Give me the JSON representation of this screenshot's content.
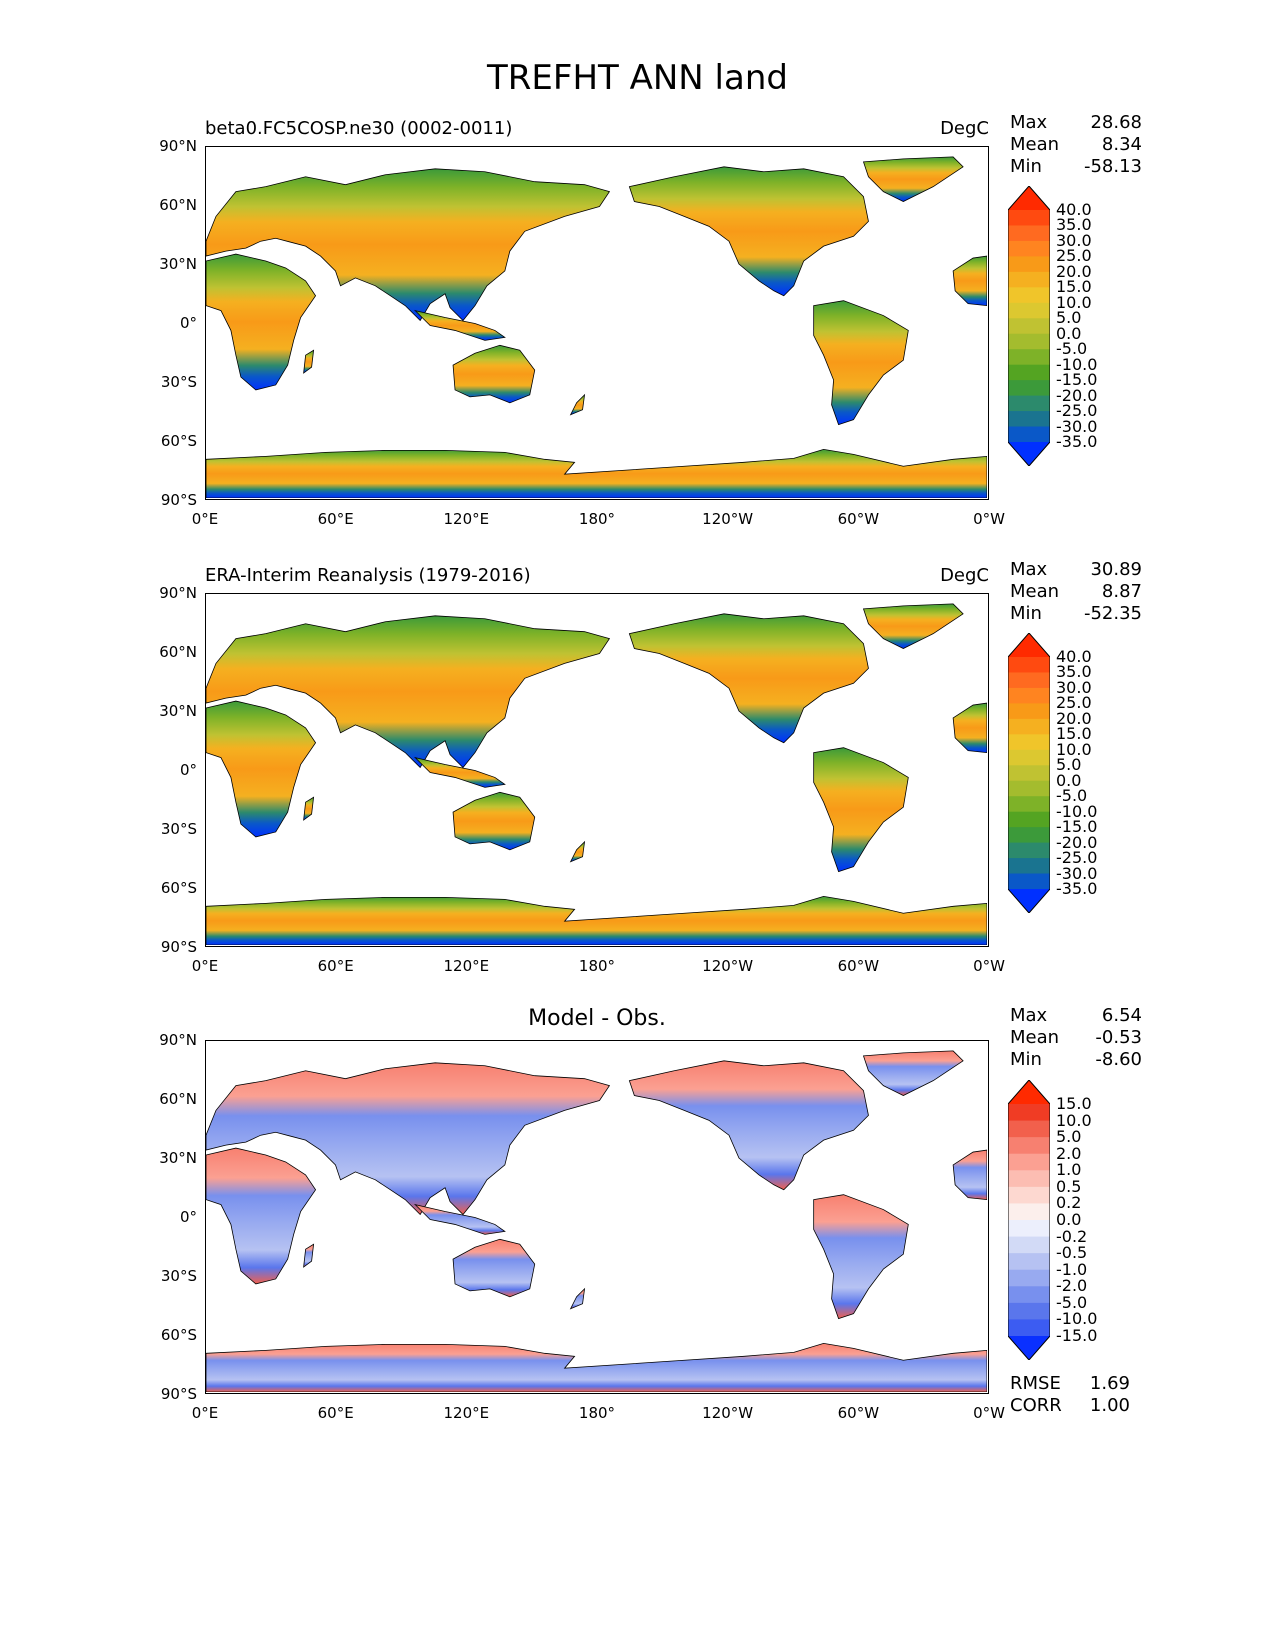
{
  "figure_title": "TREFHT ANN land",
  "lat_ticks": [
    "90°N",
    "60°N",
    "30°N",
    "0°",
    "30°S",
    "60°S",
    "90°S"
  ],
  "lon_ticks": [
    "0°E",
    "60°E",
    "120°E",
    "180°",
    "120°W",
    "60°W",
    "0°W"
  ],
  "panels": [
    {
      "title_left": "beta0.FC5COSP.ne30 (0002-0011)",
      "title_center": "",
      "units": "DegC",
      "stats": [
        {
          "label": "Max",
          "value": "28.68"
        },
        {
          "label": "Mean",
          "value": "8.34"
        },
        {
          "label": "Min",
          "value": "-58.13"
        }
      ],
      "colorbar": "abs"
    },
    {
      "title_left": "ERA-Interim Reanalysis (1979-2016)",
      "title_center": "",
      "units": "DegC",
      "stats": [
        {
          "label": "Max",
          "value": "30.89"
        },
        {
          "label": "Mean",
          "value": "8.87"
        },
        {
          "label": "Min",
          "value": "-52.35"
        }
      ],
      "colorbar": "abs"
    },
    {
      "title_left": "",
      "title_center": "Model - Obs.",
      "units": "",
      "stats": [
        {
          "label": "Max",
          "value": "6.54"
        },
        {
          "label": "Mean",
          "value": "-0.53"
        },
        {
          "label": "Min",
          "value": "-8.60"
        }
      ],
      "extra_stats": [
        {
          "label": "RMSE",
          "value": "1.69"
        },
        {
          "label": "CORR",
          "value": "1.00"
        }
      ],
      "colorbar": "diff"
    }
  ],
  "colorbars": {
    "abs": {
      "labels": [
        "40.0",
        "35.0",
        "30.0",
        "25.0",
        "20.0",
        "15.0",
        "10.0",
        "5.0",
        "0.0",
        "-5.0",
        "-10.0",
        "-15.0",
        "-20.0",
        "-25.0",
        "-30.0",
        "-35.0"
      ],
      "colors": [
        "#ff2a00",
        "#ff4a10",
        "#ff6a20",
        "#ff8420",
        "#f89a18",
        "#f5b020",
        "#f0c52a",
        "#dcc830",
        "#c0c232",
        "#a4bc2e",
        "#7eb228",
        "#54a422",
        "#3c9a3a",
        "#2c8a6c",
        "#1a7490",
        "#0a58c8",
        "#0030ff"
      ]
    },
    "diff": {
      "labels": [
        "15.0",
        "10.0",
        "5.0",
        "2.0",
        "1.0",
        "0.5",
        "0.2",
        "0.0",
        "-0.2",
        "-0.5",
        "-1.0",
        "-2.0",
        "-5.0",
        "-10.0",
        "-15.0"
      ],
      "colors": [
        "#ff2a00",
        "#f03c24",
        "#f2604c",
        "#f78070",
        "#fba092",
        "#fcbdb2",
        "#fdd8d0",
        "#fcefec",
        "#eceffc",
        "#d2daf6",
        "#b6c2f2",
        "#98aaf0",
        "#7890ee",
        "#5a76ec",
        "#3c5cf2",
        "#0a30ff"
      ]
    }
  }
}
